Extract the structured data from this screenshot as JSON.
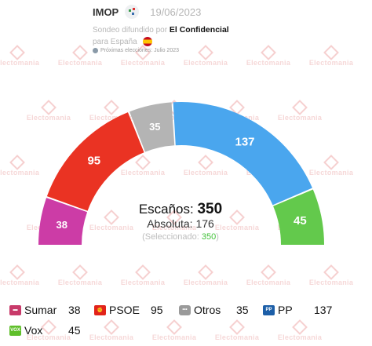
{
  "header": {
    "pollster": "IMOP",
    "date": "19/06/2023",
    "byline_prefix": "Sondeo difundido por",
    "outlet": "El Confidencial",
    "country_line": "para España",
    "next_elections": "Próximas elecciones: Julio 2023",
    "icons": {
      "pollster": "pollster-logo-icon",
      "flag": "spain-flag-icon",
      "next": "calendar-icon"
    }
  },
  "watermark": "Electomania",
  "summary": {
    "seats_label": "Escaños:",
    "seats_total": "350",
    "majority_label": "Absoluta:",
    "majority_value": "176",
    "selected_open": "(Seleccionado:",
    "selected_value": "350",
    "selected_close": ")"
  },
  "chart_data": {
    "type": "hemicycle",
    "total": 350,
    "majority": 176,
    "series": [
      {
        "name": "Sumar",
        "value": 38,
        "color": "#cc3ca6"
      },
      {
        "name": "PSOE",
        "value": 95,
        "color": "#ea3323"
      },
      {
        "name": "Otros",
        "value": 35,
        "color": "#b4b4b4"
      },
      {
        "name": "PP",
        "value": 137,
        "color": "#4aa6ee"
      },
      {
        "name": "Vox",
        "value": 45,
        "color": "#63c94c"
      }
    ]
  },
  "legend": [
    {
      "name": "Sumar",
      "value": "38",
      "icon": "sumar-logo-icon",
      "color": "#c83a6a"
    },
    {
      "name": "PSOE",
      "value": "95",
      "icon": "psoe-logo-icon",
      "color": "#e2231a"
    },
    {
      "name": "Otros",
      "value": "35",
      "icon": "otros-dots-icon",
      "color": "#9a9a9a"
    },
    {
      "name": "PP",
      "value": "137",
      "icon": "pp-logo-icon",
      "color": "#1d5fa8"
    },
    {
      "name": "Vox",
      "value": "45",
      "icon": "vox-logo-icon",
      "color": "#5fbf2a"
    }
  ]
}
